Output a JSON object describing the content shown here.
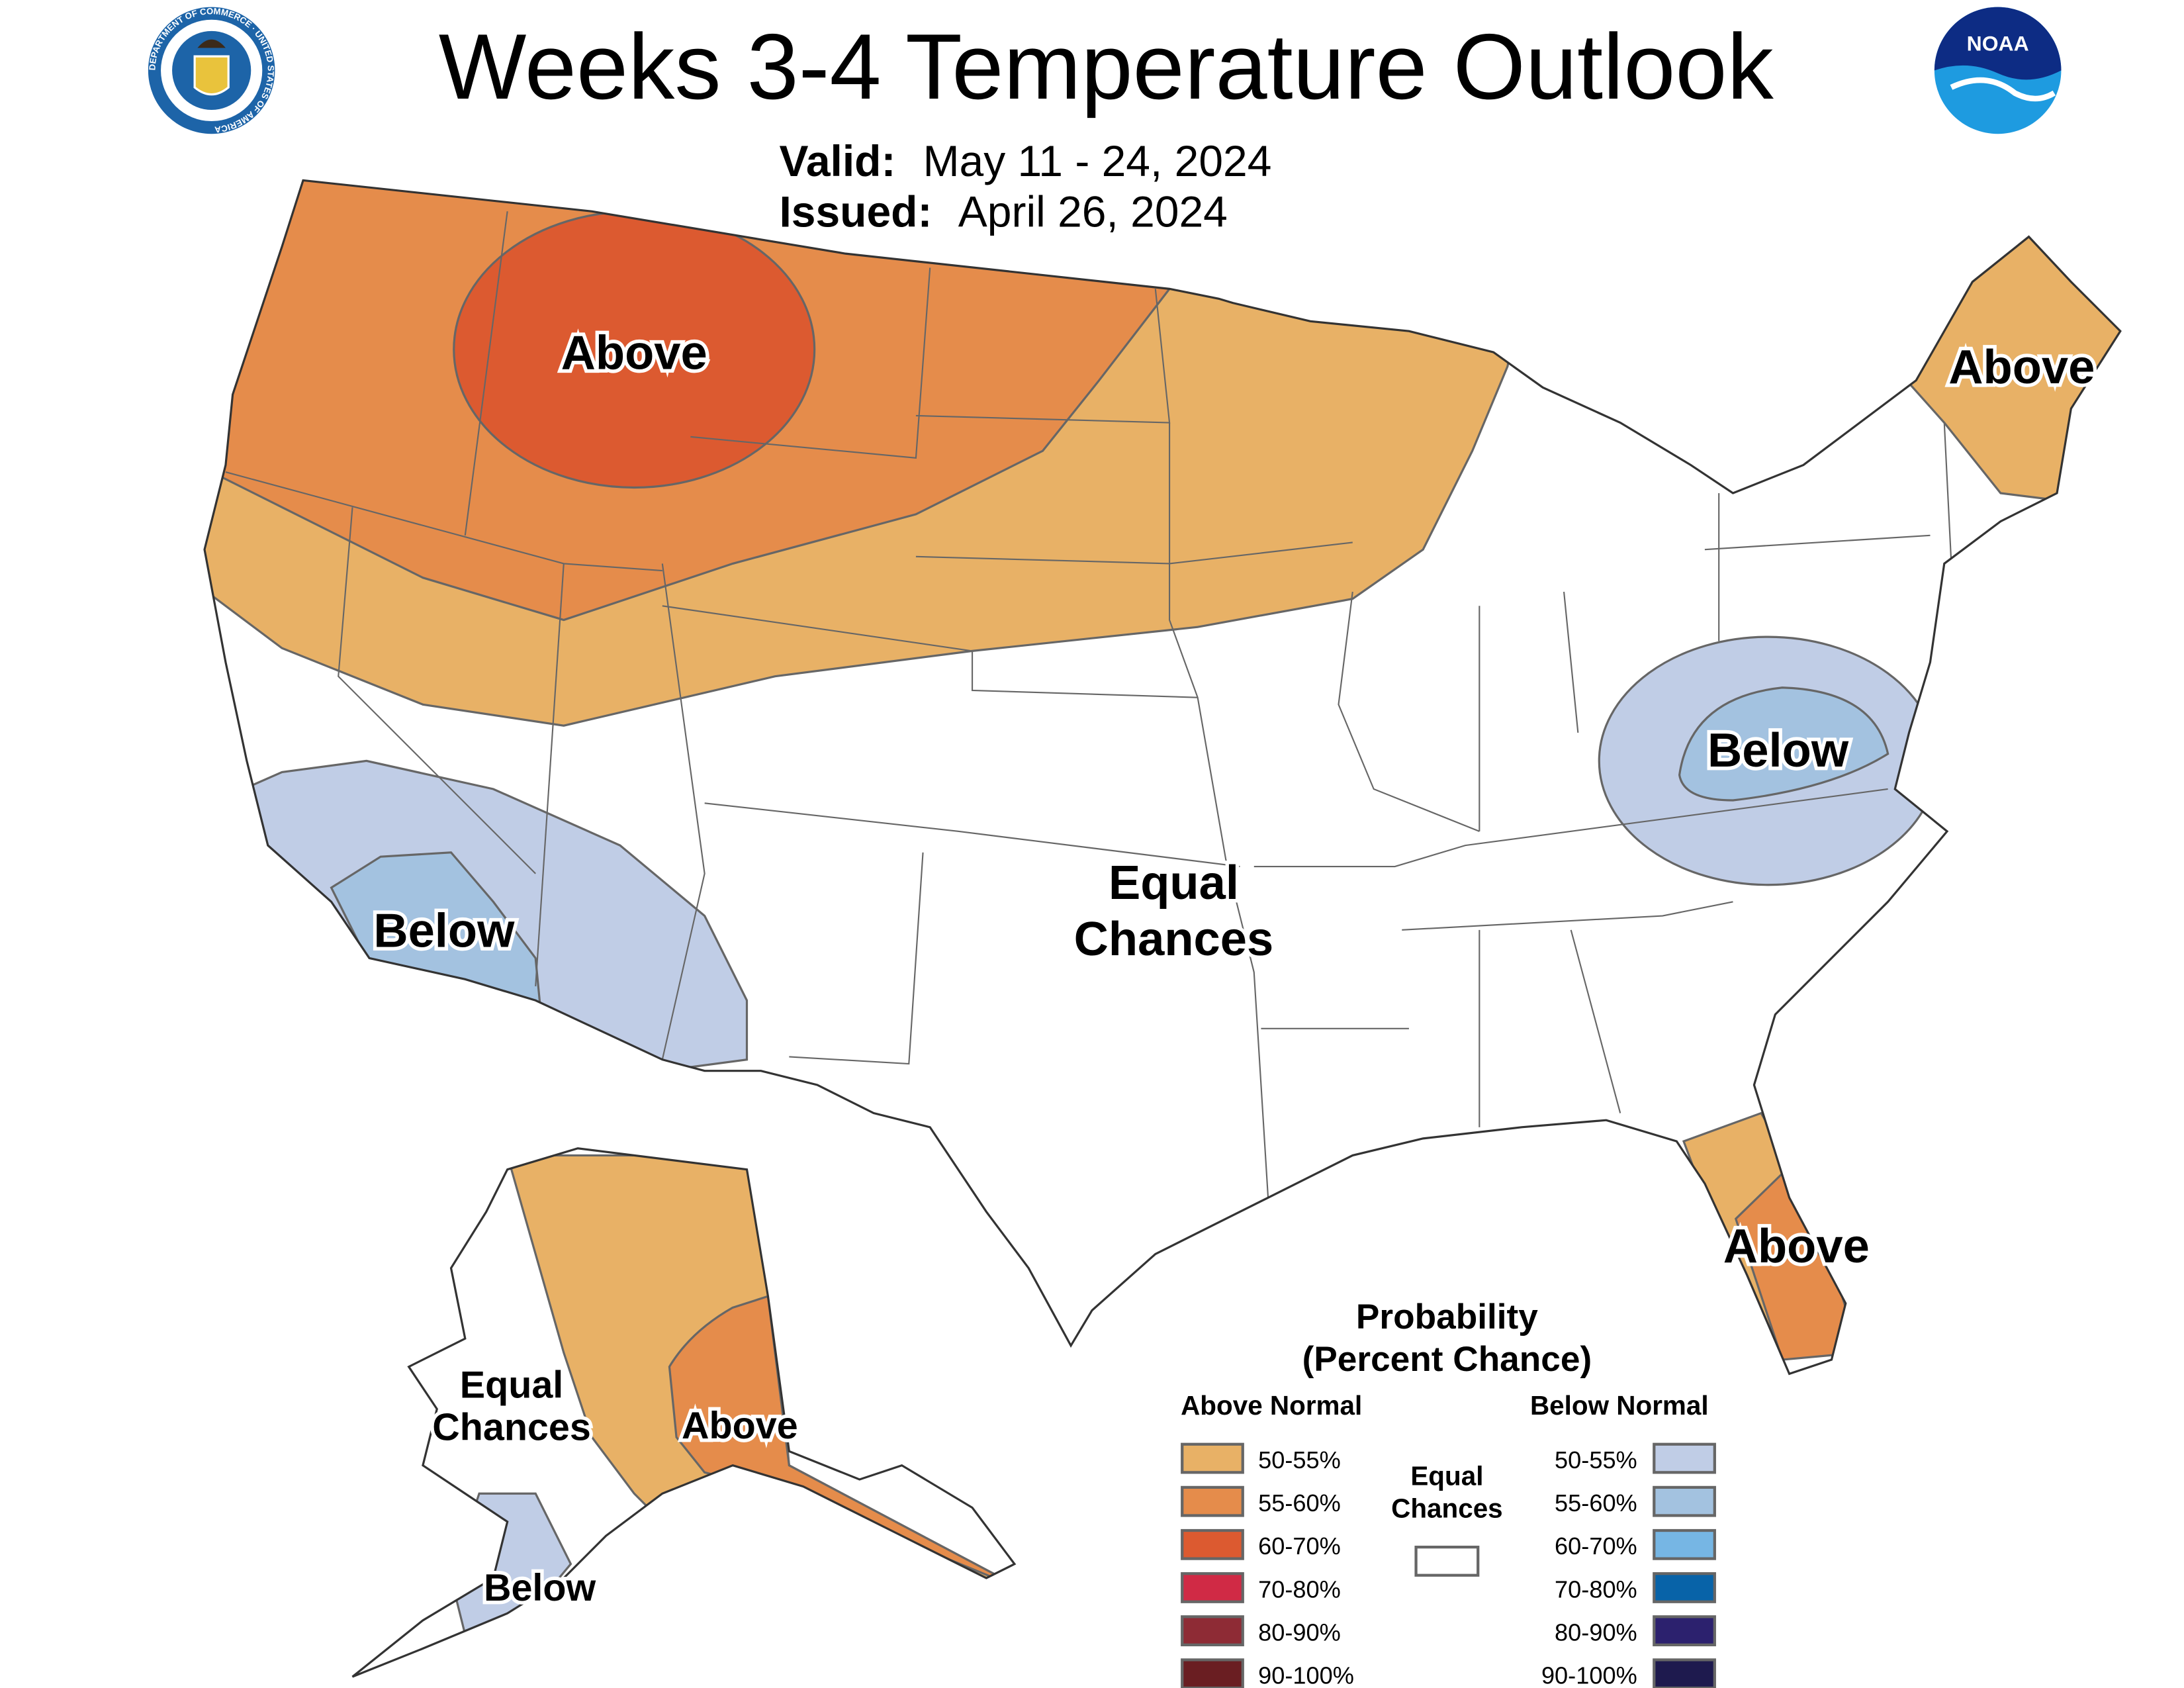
{
  "header": {
    "title": "Weeks 3-4 Temperature Outlook",
    "valid_label": "Valid:",
    "valid_value": "May 11 - 24, 2024",
    "issued_label": "Issued:",
    "issued_value": "April 26, 2024",
    "left_logo": "department-of-commerce-seal",
    "left_logo_text": "DEPARTMENT OF COMMERCE · UNITED STATES OF AMERICA",
    "right_logo": "noaa-logo",
    "right_logo_text": "NOAA"
  },
  "map_labels": {
    "northwest_above": "Above",
    "northeast_above": "Above",
    "east_below": "Below",
    "southwest_below": "Below",
    "center_equal_1": "Equal",
    "center_equal_2": "Chances",
    "florida_above": "Above",
    "alaska_equal_1": "Equal",
    "alaska_equal_2": "Chances",
    "alaska_above": "Above",
    "alaska_below": "Below"
  },
  "legend": {
    "title_1": "Probability",
    "title_2": "(Percent Chance)",
    "above_header": "Above Normal",
    "below_header": "Below Normal",
    "equal_1": "Equal",
    "equal_2": "Chances",
    "equal_color": "#FFFFFF",
    "above": [
      {
        "label": "50-55%",
        "color": "#E8B166"
      },
      {
        "label": "55-60%",
        "color": "#E58C4B"
      },
      {
        "label": "60-70%",
        "color": "#DC5A30"
      },
      {
        "label": "70-80%",
        "color": "#D02A45"
      },
      {
        "label": "80-90%",
        "color": "#8E2B35"
      },
      {
        "label": "90-100%",
        "color": "#6A1E22"
      }
    ],
    "below": [
      {
        "label": "50-55%",
        "color": "#C0CDE6"
      },
      {
        "label": "55-60%",
        "color": "#A3C2E0"
      },
      {
        "label": "60-70%",
        "color": "#76B6E4"
      },
      {
        "label": "70-80%",
        "color": "#0863A8"
      },
      {
        "label": "80-90%",
        "color": "#2C216E"
      },
      {
        "label": "90-100%",
        "color": "#1E1A4E"
      }
    ]
  }
}
